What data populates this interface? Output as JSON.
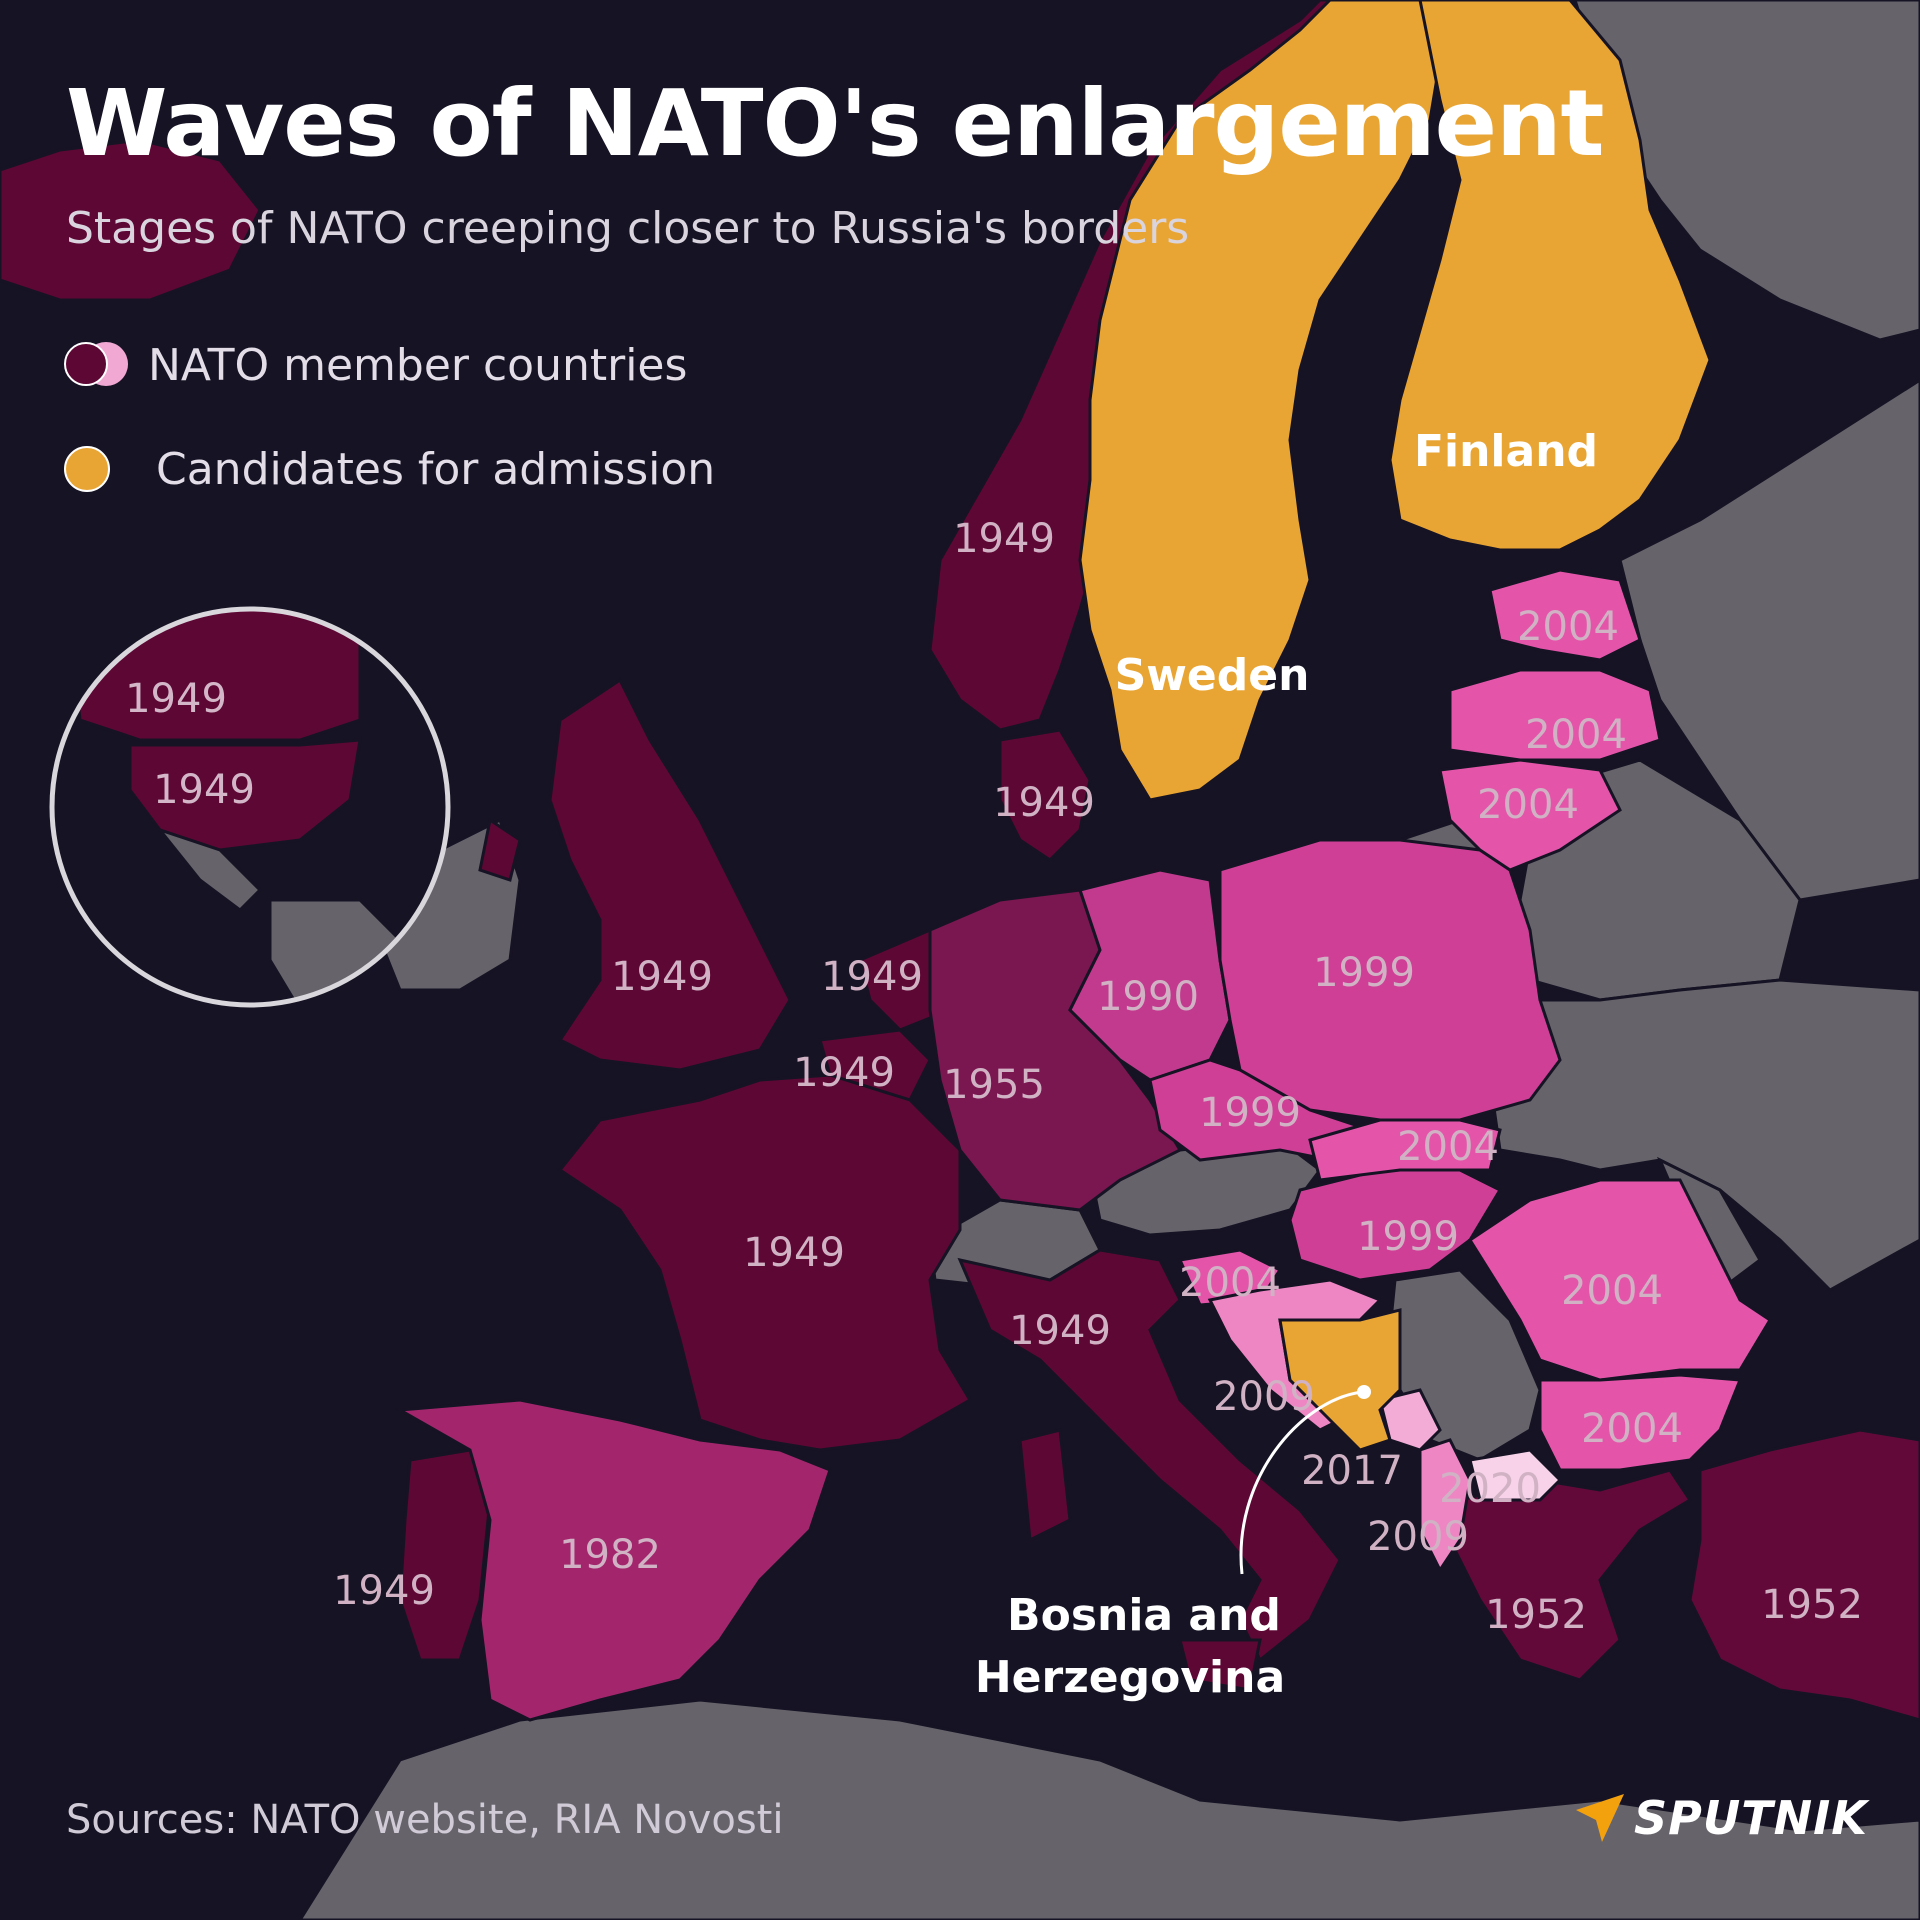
{
  "title": "Waves of NATO's enlargement",
  "subtitle": "Stages of NATO creeping closer to Russia's borders",
  "legend": {
    "members_label": "NATO member countries",
    "candidates_label": "Candidates for admission"
  },
  "source": "Sources: NATO website, RIA Novosti",
  "brand": {
    "name": "SPUTNIK",
    "icon": "sputnik-logo-icon"
  },
  "colors": {
    "background": "#161324",
    "non_member": "#66636b",
    "candidate": "#e9a534",
    "wave_1949": "#5d0734",
    "wave_1952": "#63093a",
    "wave_1955": "#7a1650",
    "wave_1982": "#a3266d",
    "wave_1990": "#c23a8e",
    "wave_1999": "#cf3f96",
    "wave_2004": "#e455aa",
    "wave_2009": "#ee86c4",
    "wave_2017": "#f3acd6",
    "wave_2020": "#f7d2e8"
  },
  "inset_labels": {
    "canada": "1949",
    "usa": "1949"
  },
  "map_labels": {
    "norway": "1949",
    "denmark": "1949",
    "uk": "1949",
    "netherlands": "1949",
    "belgium": "1949",
    "france": "1949",
    "portugal": "1949",
    "italy": "1949",
    "west_germany": "1955",
    "east_germany": "1990",
    "spain": "1982",
    "poland": "1999",
    "czechia": "1999",
    "hungary": "1999",
    "slovakia": "2004",
    "slovenia": "2004",
    "romania": "2004",
    "bulgaria": "2004",
    "estonia": "2004",
    "latvia": "2004",
    "lithuania": "2004",
    "croatia": "2009",
    "albania": "2009",
    "montenegro": "2017",
    "north_macedonia": "2020",
    "greece": "1952",
    "turkey": "1952"
  },
  "candidate_labels": {
    "finland": "Finland",
    "sweden": "Sweden",
    "bosnia_line1": "Bosnia and",
    "bosnia_line2": "Herzegovina"
  }
}
